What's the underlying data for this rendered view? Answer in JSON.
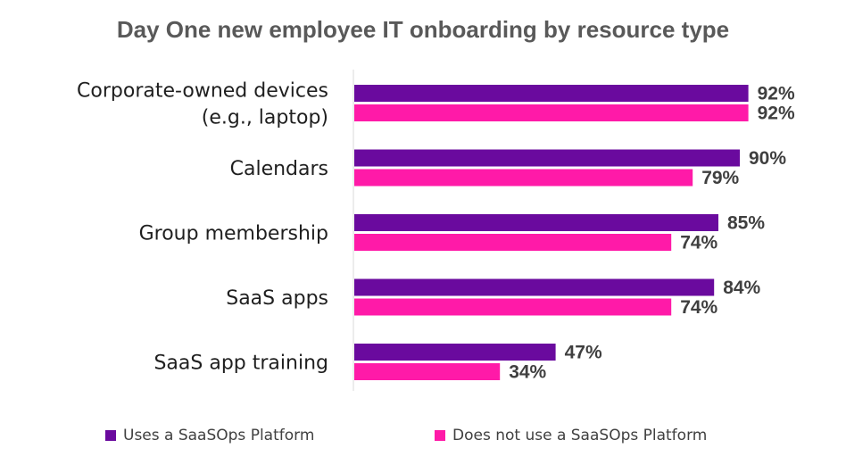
{
  "chart_data": {
    "type": "bar",
    "orientation": "horizontal",
    "title": "Day One new employee IT onboarding by resource type",
    "categories": [
      [
        "Corporate-owned devices",
        "(e.g., laptop)"
      ],
      [
        "Calendars"
      ],
      [
        "Group membership"
      ],
      [
        "SaaS apps"
      ],
      [
        "SaaS app training"
      ]
    ],
    "series": [
      {
        "name": "Uses a SaaSOps Platform",
        "color": "#6a0a9e",
        "values": [
          92,
          90,
          85,
          84,
          47
        ],
        "labels": [
          "92%",
          "90%",
          "85%",
          "84%",
          "47%"
        ]
      },
      {
        "name": "Does not use a SaaSOps Platform",
        "color": "#ff1aa8",
        "values": [
          92,
          79,
          74,
          74,
          34
        ],
        "labels": [
          "92%",
          "79%",
          "74%",
          "74%",
          "34%"
        ]
      }
    ],
    "xlim": [
      0,
      100
    ],
    "grid": false,
    "legend": "bottom"
  }
}
